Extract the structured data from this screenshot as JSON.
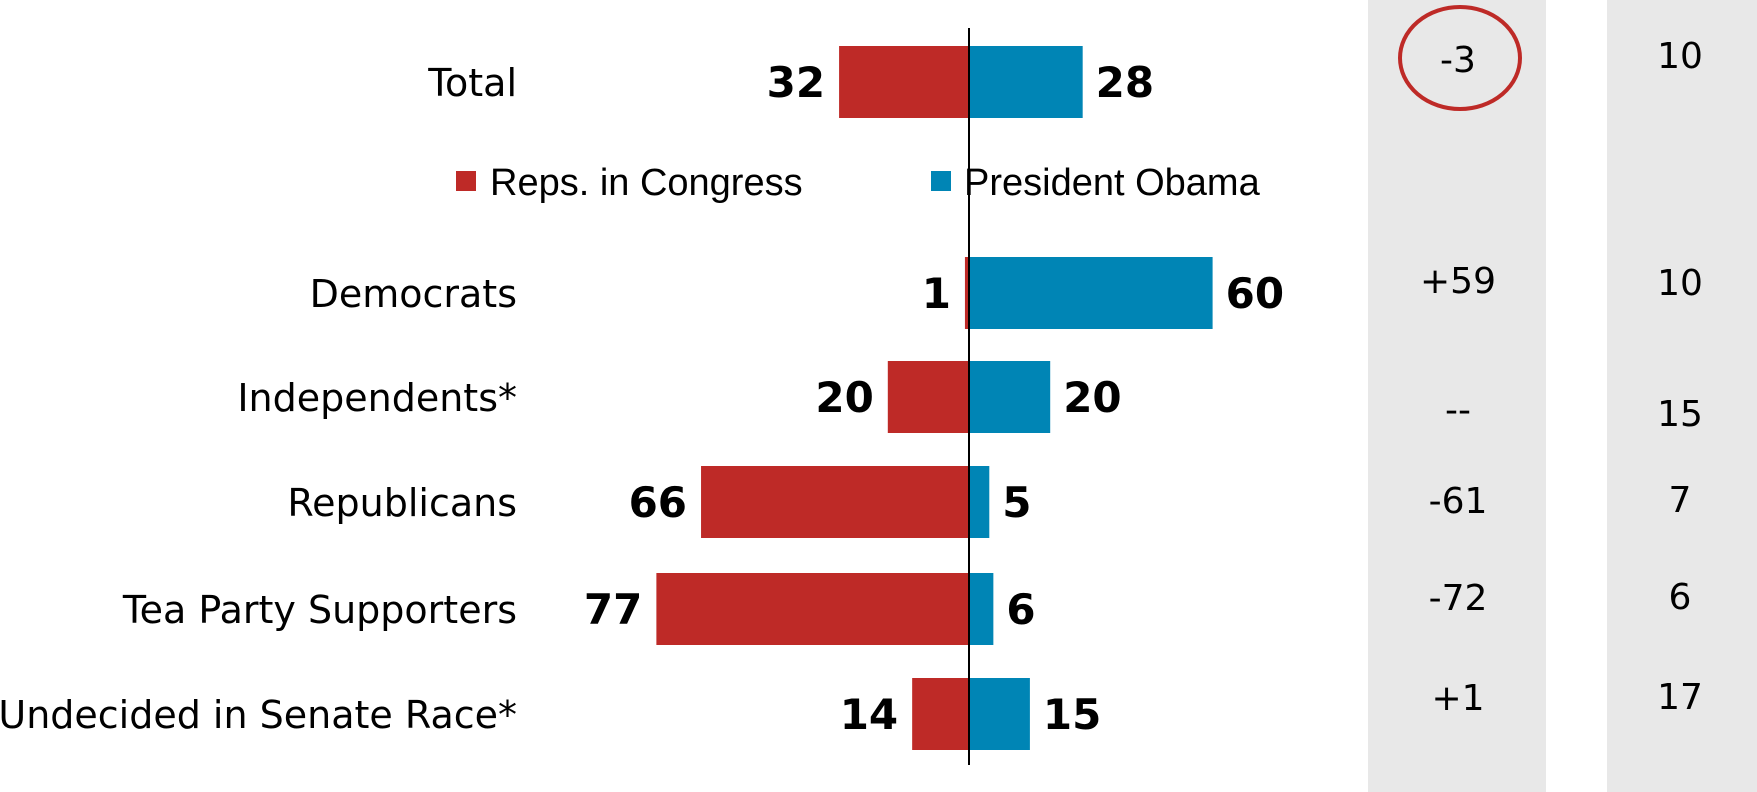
{
  "chart_data": {
    "type": "bar",
    "orientation": "diverging-horizontal",
    "categories": [
      "Total",
      "Democrats",
      "Independents*",
      "Republicans",
      "Tea Party Supporters",
      "Undecided in Senate Race*"
    ],
    "series": [
      {
        "name": "Reps. in Congress",
        "color": "#be2a27",
        "values": [
          32,
          1,
          20,
          66,
          77,
          14
        ]
      },
      {
        "name": "President Obama",
        "color": "#0085b5",
        "values": [
          28,
          60,
          20,
          5,
          6,
          15
        ]
      }
    ],
    "legend": {
      "placement": "below-first-bar"
    },
    "difference_column": [
      "-3",
      "+59",
      "--",
      "-61",
      "-72",
      "+1"
    ],
    "other_column": [
      "10",
      "10",
      "15",
      "7",
      "6",
      "17"
    ],
    "highlight": {
      "row": 0,
      "column": "difference",
      "style": "circle",
      "color": "#be2a27"
    },
    "side_column_background": "#e8e8e8",
    "axis_color": "#000000"
  }
}
